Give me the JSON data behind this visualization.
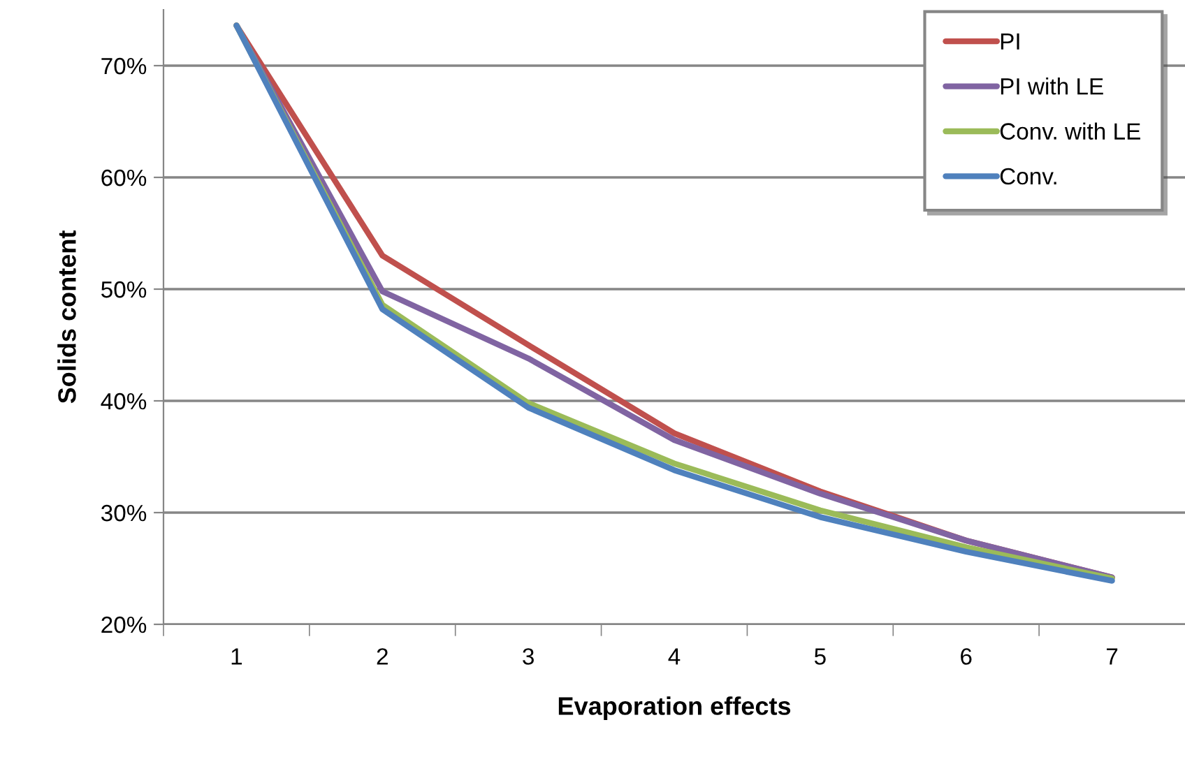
{
  "chart_data": {
    "type": "line",
    "xlabel": "Evaporation effects",
    "ylabel": "Solids content",
    "categories": [
      "1",
      "2",
      "3",
      "4",
      "5",
      "6",
      "7"
    ],
    "series": [
      {
        "name": "PI",
        "color": "#c0504d",
        "values": [
          73.6,
          53.0,
          45.0,
          37.1,
          31.9,
          27.5,
          24.2
        ]
      },
      {
        "name": "PI with LE",
        "color": "#8064a2",
        "values": [
          73.6,
          49.8,
          43.8,
          36.5,
          31.7,
          27.5,
          24.2
        ]
      },
      {
        "name": "Conv. with LE",
        "color": "#9bbb59",
        "values": [
          73.6,
          48.6,
          39.8,
          34.4,
          30.2,
          26.9,
          24.1
        ]
      },
      {
        "name": "Conv.",
        "color": "#4f81bd",
        "values": [
          73.6,
          48.2,
          39.4,
          33.8,
          29.6,
          26.5,
          23.9
        ]
      }
    ],
    "ylim": [
      20,
      75
    ],
    "yticks": [
      {
        "value": 20,
        "label": "20%"
      },
      {
        "value": 30,
        "label": "30%"
      },
      {
        "value": 40,
        "label": "40%"
      },
      {
        "value": 50,
        "label": "50%"
      },
      {
        "value": 60,
        "label": "60%"
      },
      {
        "value": 70,
        "label": "70%"
      }
    ],
    "grid": "y",
    "legend": "top right",
    "marker": "none",
    "line_style": "solid"
  }
}
